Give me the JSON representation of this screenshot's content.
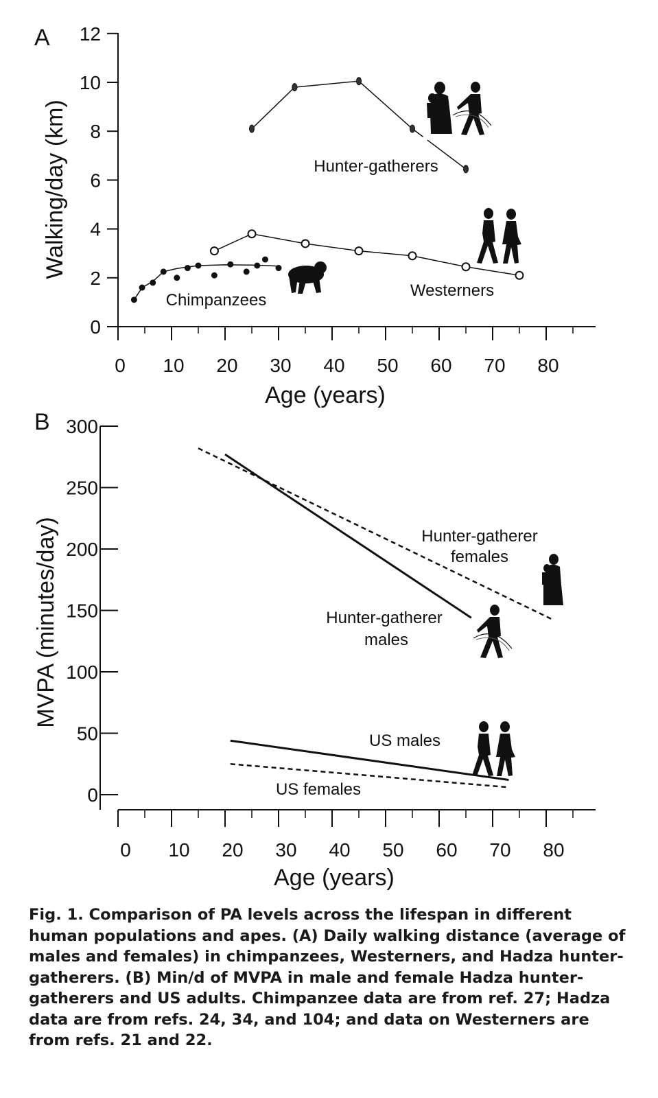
{
  "chart_data": [
    {
      "panel": "A",
      "type": "line",
      "xlabel": "Age (years)",
      "ylabel": "Walking/day (km)",
      "xlim": [
        0,
        90
      ],
      "ylim": [
        0,
        12
      ],
      "xticks": [
        0,
        10,
        20,
        30,
        40,
        50,
        60,
        70,
        80
      ],
      "yticks": [
        0,
        2,
        4,
        6,
        8,
        10,
        12
      ],
      "grid": false,
      "series": [
        {
          "name": "Hunter-gatherers",
          "marker": "filled-ellipse",
          "x": [
            25,
            33,
            45,
            55,
            65
          ],
          "y": [
            8.1,
            9.8,
            10.05,
            8.1,
            6.45
          ]
        },
        {
          "name": "Westerners",
          "marker": "open-circle",
          "x": [
            18,
            25,
            35,
            45,
            55,
            65,
            75
          ],
          "y": [
            3.1,
            3.8,
            3.4,
            3.1,
            2.9,
            2.45,
            2.1
          ]
        },
        {
          "name": "Chimpanzees",
          "marker": "filled-circle",
          "x": [
            3,
            4.5,
            6.5,
            8.5,
            11,
            13,
            15,
            18,
            21,
            24,
            26,
            27.5,
            30
          ],
          "y": [
            1.1,
            1.6,
            1.8,
            2.25,
            2.0,
            2.4,
            2.5,
            2.1,
            2.55,
            2.25,
            2.5,
            2.75,
            2.4
          ],
          "fit_x": [
            3,
            4.5,
            6.5,
            8.5,
            11,
            15,
            20,
            25,
            30
          ],
          "fit_y": [
            1.1,
            1.6,
            1.85,
            2.25,
            2.38,
            2.5,
            2.53,
            2.52,
            2.48
          ]
        }
      ]
    },
    {
      "panel": "B",
      "type": "line",
      "xlabel": "Age (years)",
      "ylabel": "MVPA (minutes/day)",
      "xlim": [
        0,
        90
      ],
      "ylim": [
        -10,
        300
      ],
      "xticks": [
        0,
        10,
        20,
        30,
        40,
        50,
        60,
        70,
        80
      ],
      "yticks": [
        0,
        50,
        100,
        150,
        200,
        250,
        300
      ],
      "grid": false,
      "series": [
        {
          "name": "Hunter-gatherer males",
          "style": "solid",
          "x": [
            20,
            66
          ],
          "y": [
            277,
            144
          ]
        },
        {
          "name": "Hunter-gatherer females",
          "style": "dashed",
          "x": [
            15,
            81
          ],
          "y": [
            282,
            143
          ]
        },
        {
          "name": "US males",
          "style": "solid",
          "x": [
            21,
            73
          ],
          "y": [
            44,
            12
          ]
        },
        {
          "name": "US females",
          "style": "dashed",
          "x": [
            21,
            73
          ],
          "y": [
            25,
            6
          ]
        }
      ]
    }
  ],
  "panels": {
    "a": {
      "letter": "A",
      "labels": {
        "hg": "Hunter-gatherers",
        "west": "Westerners",
        "chimp": "Chimpanzees"
      }
    },
    "b": {
      "letter": "B",
      "labels": {
        "hg_females_1": "Hunter-gatherer",
        "hg_females_2": "females",
        "hg_males_1": "Hunter-gatherer",
        "hg_males_2": "males",
        "us_males": "US males",
        "us_females": "US females"
      }
    }
  },
  "caption": {
    "lead": "Fig. 1.",
    "text": "Comparison of PA levels across the lifespan in different human populations and apes. (A) Daily walking distance (average of males and females) in chimpanzees, Westerners, and Hadza hunter-gatherers. (B) Min/d of MVPA in male and female Hadza hunter-gatherers and US adults. Chimpanzee data are from ref. 27; Hadza data are from refs. 24, 34, and 104; and data on Westerners are from refs. 21 and 22."
  }
}
